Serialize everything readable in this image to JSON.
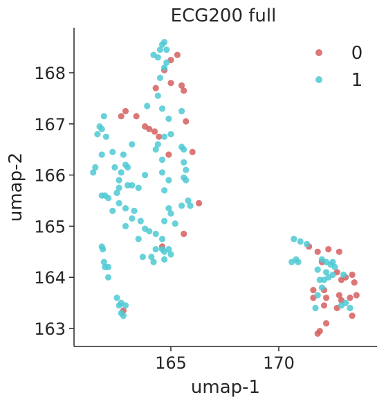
{
  "chart_data": {
    "type": "scatter",
    "title": "ECG200 full",
    "xlabel": "umap-1",
    "ylabel": "umap-2",
    "xlim": [
      161.0,
      174.5
    ],
    "ylim": [
      162.65,
      168.95
    ],
    "xticks": [
      165,
      170
    ],
    "yticks": [
      163,
      164,
      165,
      166,
      167,
      168
    ],
    "legend_position": "top-right",
    "series": [
      {
        "name": "0",
        "color": "#d65f5f",
        "points": [
          [
            165.3,
            168.35
          ],
          [
            165.0,
            168.25
          ],
          [
            164.7,
            168.05
          ],
          [
            165.0,
            167.8
          ],
          [
            164.3,
            167.7
          ],
          [
            165.5,
            167.75
          ],
          [
            165.6,
            167.65
          ],
          [
            162.9,
            167.25
          ],
          [
            162.7,
            167.15
          ],
          [
            163.4,
            167.15
          ],
          [
            163.8,
            166.95
          ],
          [
            164.0,
            166.9
          ],
          [
            165.7,
            167.05
          ],
          [
            164.25,
            166.85
          ],
          [
            164.45,
            166.75
          ],
          [
            166.0,
            166.45
          ],
          [
            164.9,
            166.4
          ],
          [
            165.6,
            164.85
          ],
          [
            166.3,
            165.45
          ],
          [
            164.6,
            164.6
          ],
          [
            162.8,
            163.35
          ],
          [
            171.4,
            164.6
          ],
          [
            171.8,
            164.5
          ],
          [
            172.3,
            164.55
          ],
          [
            172.8,
            164.5
          ],
          [
            172.0,
            164.3
          ],
          [
            172.7,
            164.1
          ],
          [
            173.1,
            164.0
          ],
          [
            173.4,
            164.05
          ],
          [
            172.9,
            163.95
          ],
          [
            171.6,
            163.75
          ],
          [
            172.1,
            163.75
          ],
          [
            173.5,
            163.9
          ],
          [
            171.6,
            163.6
          ],
          [
            172.2,
            163.6
          ],
          [
            172.8,
            163.65
          ],
          [
            173.3,
            163.6
          ],
          [
            173.6,
            163.65
          ],
          [
            172.9,
            163.55
          ],
          [
            172.1,
            163.45
          ],
          [
            172.7,
            163.4
          ],
          [
            173.4,
            163.25
          ],
          [
            172.2,
            163.1
          ],
          [
            171.9,
            162.95
          ],
          [
            171.8,
            162.9
          ]
        ]
      },
      {
        "name": "1",
        "color": "#4ec9d2",
        "points": [
          [
            164.7,
            168.6
          ],
          [
            164.6,
            168.55
          ],
          [
            164.5,
            168.45
          ],
          [
            164.8,
            168.45
          ],
          [
            164.2,
            168.35
          ],
          [
            164.4,
            168.3
          ],
          [
            164.8,
            168.2
          ],
          [
            164.7,
            168.1
          ],
          [
            164.5,
            167.9
          ],
          [
            164.4,
            167.55
          ],
          [
            164.6,
            167.3
          ],
          [
            163.9,
            167.35
          ],
          [
            164.9,
            167.1
          ],
          [
            165.5,
            167.25
          ],
          [
            161.9,
            167.15
          ],
          [
            161.7,
            166.95
          ],
          [
            161.8,
            166.9
          ],
          [
            161.6,
            166.8
          ],
          [
            162.0,
            166.75
          ],
          [
            163.2,
            166.6
          ],
          [
            164.7,
            166.75
          ],
          [
            165.0,
            166.8
          ],
          [
            164.3,
            166.5
          ],
          [
            164.4,
            166.6
          ],
          [
            165.5,
            166.55
          ],
          [
            165.6,
            166.5
          ],
          [
            161.8,
            166.4
          ],
          [
            162.3,
            166.45
          ],
          [
            162.8,
            166.4
          ],
          [
            164.6,
            166.3
          ],
          [
            165.6,
            166.25
          ],
          [
            162.9,
            166.2
          ],
          [
            163.0,
            166.15
          ],
          [
            162.4,
            166.15
          ],
          [
            165.7,
            166.1
          ],
          [
            161.5,
            166.15
          ],
          [
            161.4,
            166.05
          ],
          [
            164.6,
            166.05
          ],
          [
            165.6,
            165.95
          ],
          [
            164.9,
            165.9
          ],
          [
            162.7,
            166.05
          ],
          [
            163.8,
            166.0
          ],
          [
            162.6,
            165.9
          ],
          [
            163.0,
            165.8
          ],
          [
            163.2,
            165.8
          ],
          [
            162.6,
            165.75
          ],
          [
            165.7,
            165.9
          ],
          [
            163.5,
            165.75
          ],
          [
            164.7,
            165.7
          ],
          [
            162.5,
            165.65
          ],
          [
            161.8,
            165.6
          ],
          [
            162.1,
            165.55
          ],
          [
            161.95,
            165.6
          ],
          [
            165.8,
            165.5
          ],
          [
            162.6,
            165.45
          ],
          [
            165.5,
            165.4
          ],
          [
            165.9,
            165.4
          ],
          [
            162.9,
            165.35
          ],
          [
            164.9,
            165.35
          ],
          [
            162.3,
            165.3
          ],
          [
            163.3,
            165.3
          ],
          [
            165.0,
            165.25
          ],
          [
            163.2,
            165.15
          ],
          [
            163.6,
            165.1
          ],
          [
            164.7,
            165.1
          ],
          [
            162.9,
            165.0
          ],
          [
            163.8,
            164.95
          ],
          [
            165.2,
            165.05
          ],
          [
            164.0,
            164.9
          ],
          [
            164.3,
            164.85
          ],
          [
            164.6,
            164.75
          ],
          [
            163.5,
            164.75
          ],
          [
            161.8,
            164.6
          ],
          [
            161.85,
            164.55
          ],
          [
            164.6,
            164.55
          ],
          [
            164.7,
            164.5
          ],
          [
            164.9,
            164.55
          ],
          [
            164.3,
            164.55
          ],
          [
            165.0,
            164.45
          ],
          [
            164.1,
            164.4
          ],
          [
            164.7,
            164.35
          ],
          [
            163.7,
            164.4
          ],
          [
            164.2,
            164.3
          ],
          [
            161.9,
            164.3
          ],
          [
            161.95,
            164.2
          ],
          [
            162.1,
            164.2
          ],
          [
            162.1,
            164.0
          ],
          [
            162.5,
            163.6
          ],
          [
            162.7,
            163.5
          ],
          [
            162.6,
            163.45
          ],
          [
            162.9,
            163.45
          ],
          [
            162.7,
            163.3
          ],
          [
            162.8,
            163.25
          ],
          [
            170.7,
            164.75
          ],
          [
            171.0,
            164.7
          ],
          [
            171.3,
            164.65
          ],
          [
            170.6,
            164.3
          ],
          [
            170.8,
            164.35
          ],
          [
            170.9,
            164.3
          ],
          [
            172.0,
            164.35
          ],
          [
            172.2,
            164.3
          ],
          [
            172.5,
            164.3
          ],
          [
            172.4,
            164.25
          ],
          [
            172.6,
            164.2
          ],
          [
            171.8,
            164.15
          ],
          [
            172.2,
            164.1
          ],
          [
            172.3,
            164.0
          ],
          [
            172.5,
            164.05
          ],
          [
            172.1,
            163.95
          ],
          [
            171.9,
            163.95
          ],
          [
            173.0,
            164.05
          ],
          [
            172.0,
            163.8
          ],
          [
            171.8,
            163.65
          ],
          [
            173.1,
            163.5
          ],
          [
            172.9,
            163.45
          ],
          [
            173.3,
            163.4
          ],
          [
            171.7,
            163.4
          ]
        ]
      }
    ]
  }
}
